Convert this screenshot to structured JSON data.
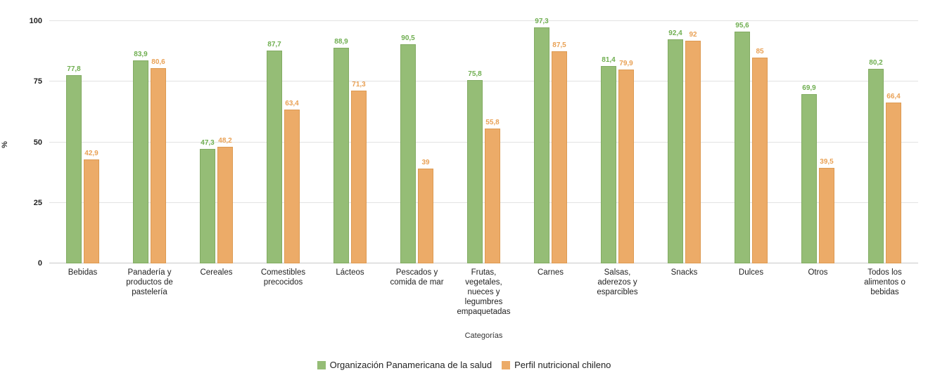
{
  "chart_data": {
    "type": "bar",
    "title": "",
    "xlabel": "Categorías",
    "ylabel": "%",
    "ylim": [
      0,
      100
    ],
    "yticks": [
      0,
      25,
      50,
      75,
      100
    ],
    "grid": true,
    "legend_position": "bottom",
    "decimal_separator": ",",
    "categories": [
      "Bebidas",
      "Panadería y productos de pastelería",
      "Cereales",
      "Comestibles precocidos",
      "Lácteos",
      "Pescados y comida de mar",
      "Frutas, vegetales, nueces y legumbres empaquetadas",
      "Carnes",
      "Salsas, aderezos y esparcibles",
      "Snacks",
      "Dulces",
      "Otros",
      "Todos los alimentos o bebidas"
    ],
    "series": [
      {
        "name": "Organización Panamericana de la salud",
        "color": "#95bd76",
        "border_color": "#82ab62",
        "label_color": "#6fae50",
        "values": [
          77.8,
          83.9,
          47.3,
          87.7,
          88.9,
          90.5,
          75.8,
          97.3,
          81.4,
          92.4,
          95.6,
          69.9,
          80.2
        ]
      },
      {
        "name": "Perfil nutricional chileno",
        "color": "#ecab68",
        "border_color": "#dd9a52",
        "label_color": "#e9a155",
        "values": [
          42.9,
          80.6,
          48.2,
          63.4,
          71.3,
          39,
          55.8,
          87.5,
          79.9,
          92,
          85,
          39.5,
          66.4
        ]
      }
    ]
  }
}
